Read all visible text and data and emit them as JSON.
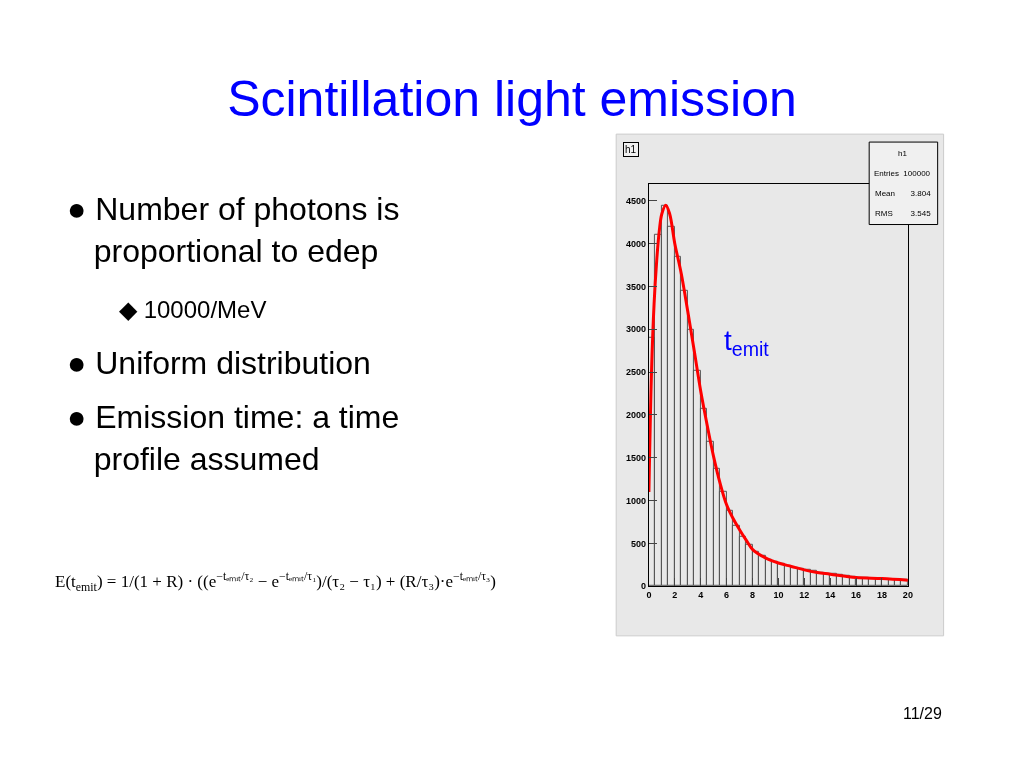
{
  "chart_data": {
    "type": "histogram",
    "title": "Scintillation light emission",
    "series": [
      {
        "color": "#555555",
        "bins": [
          0,
          0.5,
          1,
          1.5,
          2,
          2.5,
          3,
          3.5,
          4,
          4.5,
          5,
          5.5,
          6,
          6.5,
          7,
          7.5,
          8,
          8.5,
          9,
          9.5,
          10,
          10.5,
          11,
          11.5,
          12,
          12.5,
          13,
          13.5,
          14,
          14.5,
          15,
          15.5,
          16,
          16.5,
          17,
          17.5,
          18,
          18.5,
          19,
          19.5,
          20
        ],
        "values": [
          2900,
          4100,
          4440,
          4200,
          3850,
          3450,
          3000,
          2520,
          2070,
          1690,
          1370,
          1100,
          880,
          700,
          580,
          480,
          400,
          350,
          310,
          280,
          260,
          240,
          220,
          200,
          190,
          180,
          160,
          150,
          140,
          130,
          120,
          110,
          100,
          100,
          90,
          90,
          80,
          80,
          80,
          70
        ]
      },
      {
        "type": "line",
        "color": "#ff0000",
        "x": [
          0,
          0.2,
          0.4,
          0.6,
          0.8,
          1.0,
          1.3,
          1.6,
          2,
          2.5,
          3,
          3.5,
          4,
          4.5,
          5,
          5.5,
          6,
          6.5,
          7,
          7.5,
          8,
          9,
          10,
          11,
          12,
          13,
          14,
          16,
          18,
          20
        ],
        "values": [
          1100,
          2500,
          3300,
          3800,
          4150,
          4350,
          4450,
          4350,
          4000,
          3650,
          3210,
          2750,
          2280,
          1880,
          1510,
          1200,
          950,
          790,
          660,
          540,
          430,
          330,
          270,
          230,
          190,
          160,
          140,
          100,
          90,
          70
        ]
      }
    ],
    "xlim": [
      0,
      20
    ],
    "xticks": [
      0,
      2,
      4,
      6,
      8,
      10,
      12,
      14,
      16,
      18,
      20
    ],
    "ylim": [
      0,
      4700
    ],
    "yticks": [
      0,
      500,
      1000,
      1500,
      2000,
      2500,
      3000,
      3500,
      4000,
      4500
    ],
    "grid": false,
    "annotations": [
      "h1",
      "h1",
      "Entries  100000",
      "Mean       3.804",
      "RMS        3.545",
      "t$_{emit}$",
      "● Number of photons is\n   proportional to edep",
      "◆ 10000/MeV",
      "● Uniform distribution",
      "● Emission time: a time\n   profile assumed",
      "E(t$_{emit}$) = 1/(1 + R) · ((e$^{−tₑₘᵢₜ/τ₂}$ − e$^{−tₑₘᵢₜ/τ₁}$)/(τ₂ − τ₁) + (R/τ₃)·e$^{−tₑₘᵢₜ/τ₃}$)",
      "11/29"
    ]
  }
}
